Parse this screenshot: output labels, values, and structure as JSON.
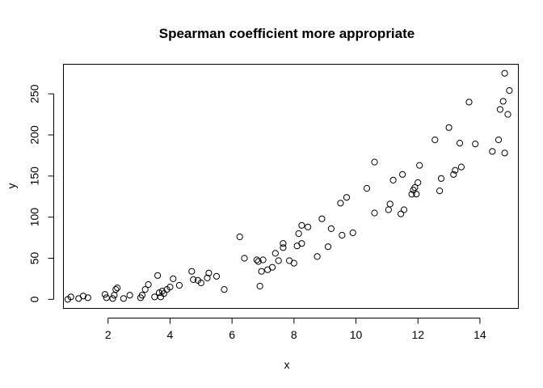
{
  "chart_data": {
    "type": "scatter",
    "title": "Spearman coefficient more appropriate",
    "xlabel": "x",
    "ylabel": "y",
    "xlim": [
      0.56,
      15.24
    ],
    "ylim": [
      -11,
      286
    ],
    "xticks": [
      2,
      4,
      6,
      8,
      10,
      12,
      14
    ],
    "yticks": [
      0,
      50,
      100,
      150,
      200,
      250
    ],
    "grid": false,
    "legend": "none",
    "x": [
      0.7,
      0.8,
      1.05,
      1.2,
      1.35,
      1.9,
      1.95,
      2.15,
      2.2,
      2.25,
      2.3,
      2.5,
      2.7,
      3.05,
      3.1,
      3.2,
      3.3,
      3.5,
      3.6,
      3.65,
      3.7,
      3.75,
      3.8,
      3.9,
      4.0,
      4.1,
      4.3,
      4.7,
      4.75,
      4.9,
      5.0,
      5.2,
      5.25,
      5.5,
      5.75,
      6.25,
      6.4,
      6.8,
      6.85,
      6.9,
      6.95,
      7.0,
      7.15,
      7.3,
      7.4,
      7.5,
      7.65,
      7.65,
      7.85,
      8.0,
      8.1,
      8.15,
      8.25,
      8.25,
      8.45,
      8.75,
      8.9,
      9.1,
      9.2,
      9.5,
      9.55,
      9.7,
      9.9,
      10.35,
      10.6,
      10.6,
      11.05,
      11.1,
      11.2,
      11.45,
      11.5,
      11.55,
      11.8,
      11.85,
      11.9,
      11.95,
      12.0,
      12.05,
      12.55,
      12.7,
      12.75,
      13.0,
      13.15,
      13.2,
      13.35,
      13.4,
      13.65,
      13.85,
      14.4,
      14.6,
      14.65,
      14.75,
      14.8,
      14.8,
      14.9,
      14.95
    ],
    "y": [
      0,
      3,
      1,
      4,
      2,
      6,
      2,
      1,
      5,
      12,
      14,
      1,
      5,
      2,
      5,
      12,
      18,
      3,
      29,
      8,
      3,
      10,
      7,
      12,
      15,
      25,
      17,
      34,
      24,
      23,
      20,
      26,
      32,
      28,
      12,
      76,
      50,
      48,
      46,
      16,
      34,
      48,
      36,
      39,
      56,
      47,
      63,
      68,
      47,
      44,
      65,
      80,
      68,
      90,
      88,
      52,
      98,
      64,
      86,
      117,
      78,
      124,
      81,
      135,
      105,
      167,
      109,
      116,
      145,
      104,
      152,
      109,
      128,
      133,
      136,
      128,
      142,
      163,
      194,
      132,
      147,
      209,
      152,
      157,
      190,
      161,
      240,
      189,
      180,
      194,
      231,
      241,
      178,
      275,
      225,
      254
    ]
  }
}
